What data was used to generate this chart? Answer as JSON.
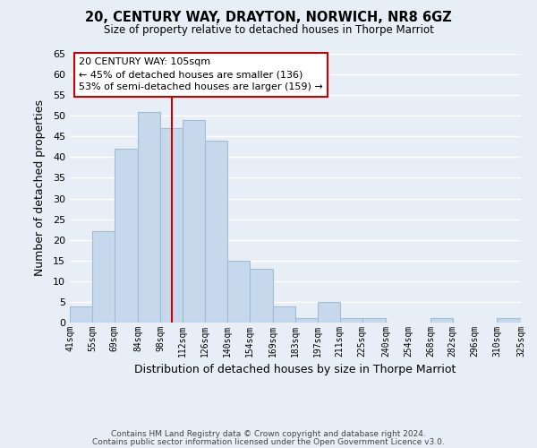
{
  "title": "20, CENTURY WAY, DRAYTON, NORWICH, NR8 6GZ",
  "subtitle": "Size of property relative to detached houses in Thorpe Marriot",
  "xlabel": "Distribution of detached houses by size in Thorpe Marriot",
  "ylabel": "Number of detached properties",
  "bar_color": "#c6d9ec",
  "bar_edge_color": "#a0bdd4",
  "background_color": "#e8eef5",
  "plot_bg_color": "#e8eef5",
  "grid_color": "#ffffff",
  "annotation_box_edge": "#cc0000",
  "annotation_line_color": "#cc0000",
  "annotation_text1": "20 CENTURY WAY: 105sqm",
  "annotation_text2": "← 45% of detached houses are smaller (136)",
  "annotation_text3": "53% of semi-detached houses are larger (159) →",
  "property_line_x": 105,
  "bins": [
    41,
    55,
    69,
    84,
    98,
    112,
    126,
    140,
    154,
    169,
    183,
    197,
    211,
    225,
    240,
    254,
    268,
    282,
    296,
    310,
    325
  ],
  "bin_labels": [
    "41sqm",
    "55sqm",
    "69sqm",
    "84sqm",
    "98sqm",
    "112sqm",
    "126sqm",
    "140sqm",
    "154sqm",
    "169sqm",
    "183sqm",
    "197sqm",
    "211sqm",
    "225sqm",
    "240sqm",
    "254sqm",
    "268sqm",
    "282sqm",
    "296sqm",
    "310sqm",
    "325sqm"
  ],
  "counts": [
    4,
    22,
    42,
    51,
    47,
    49,
    44,
    15,
    13,
    4,
    1,
    5,
    1,
    1,
    0,
    0,
    1,
    0,
    0,
    1
  ],
  "ylim": [
    0,
    65
  ],
  "yticks": [
    0,
    5,
    10,
    15,
    20,
    25,
    30,
    35,
    40,
    45,
    50,
    55,
    60,
    65
  ],
  "footer1": "Contains HM Land Registry data © Crown copyright and database right 2024.",
  "footer2": "Contains public sector information licensed under the Open Government Licence v3.0."
}
